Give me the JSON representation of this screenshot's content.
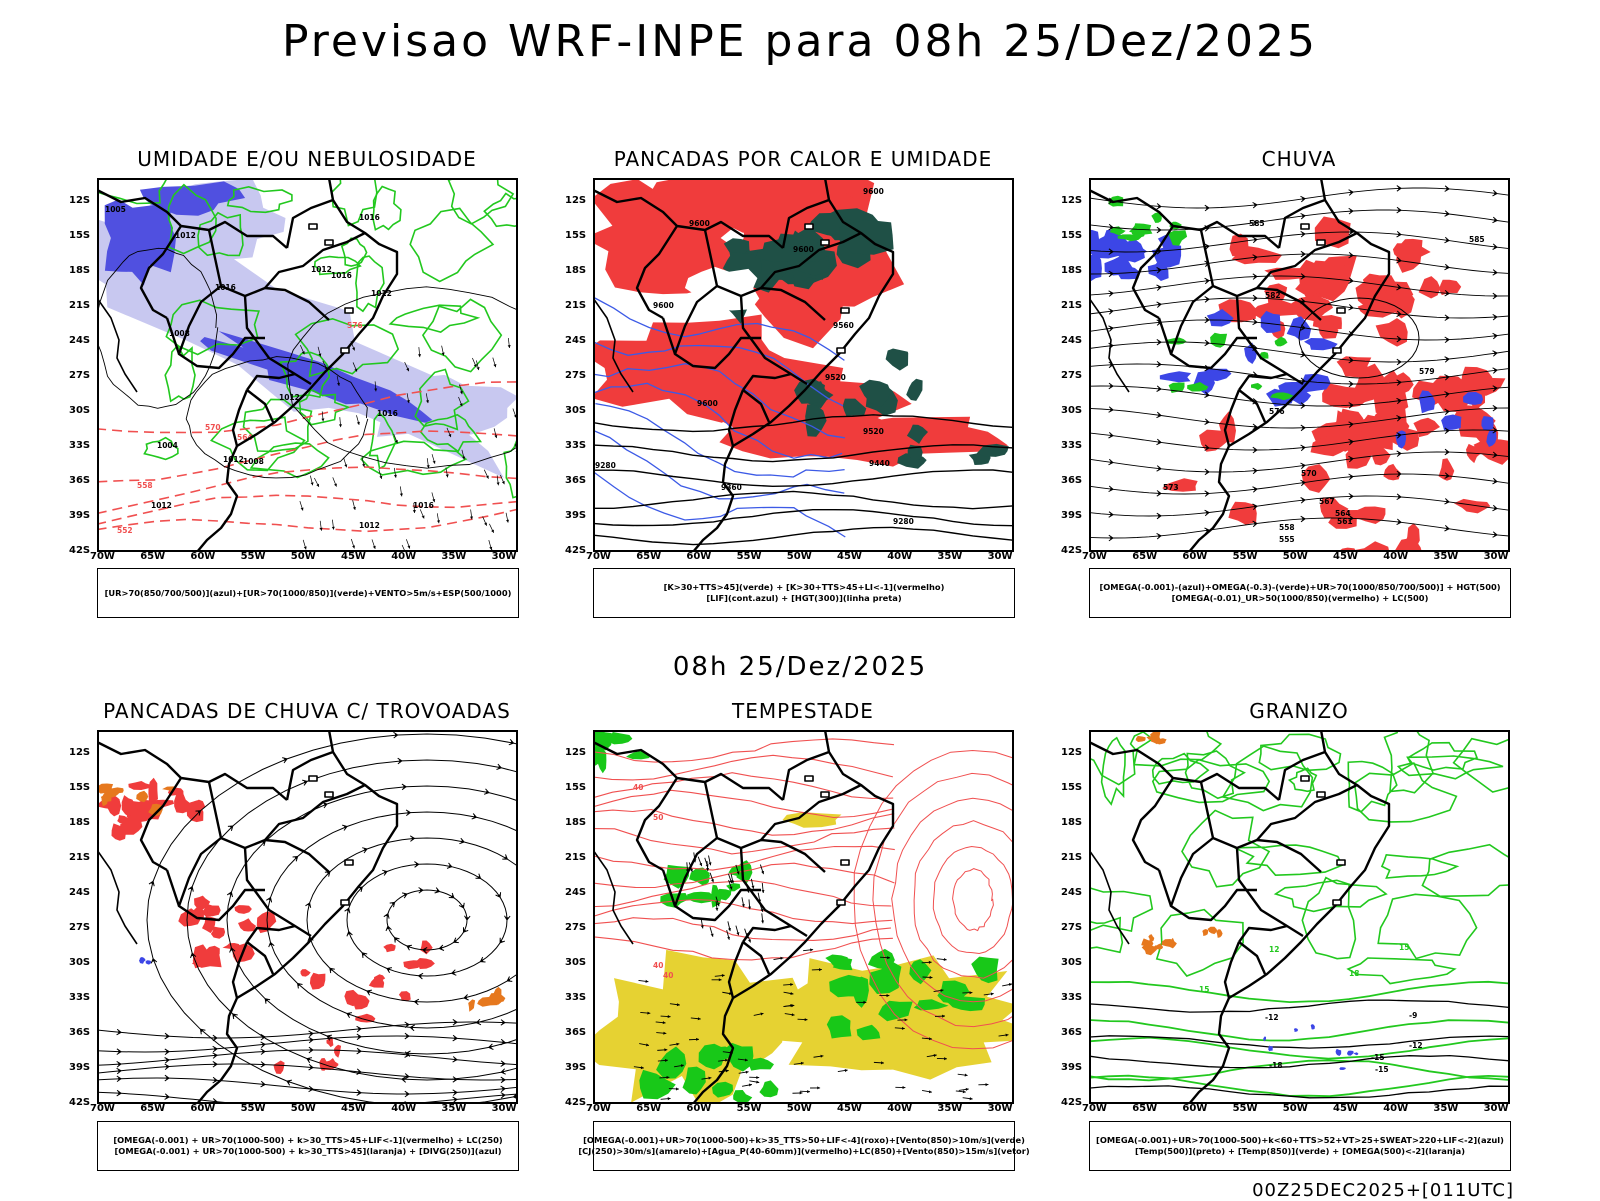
{
  "title": "Previsao WRF-INPE  para 08h 25/Dez/2025",
  "middle_time": "08h 25/Dez/2025",
  "footer": "00Z25DEC2025+[011UTC]",
  "axis": {
    "lat_ticks": [
      "12S",
      "15S",
      "18S",
      "21S",
      "24S",
      "27S",
      "30S",
      "33S",
      "36S",
      "39S",
      "42S"
    ],
    "lon_ticks": [
      "70W",
      "65W",
      "60W",
      "55W",
      "50W",
      "45W",
      "40W",
      "35W",
      "30W"
    ]
  },
  "panels": [
    {
      "title": "UMIDADE E/OU NEBULOSIDADE",
      "legend": [
        "[UR>70(850/700/500)](azul)+[UR>70(1000/850)](verde)+VENTO>5m/s+ESP(500/1000)"
      ],
      "labels": [
        "1005",
        "1012",
        "1016",
        "1012",
        "1016",
        "1012",
        "1016",
        "1008",
        "1012",
        "1016",
        "1012",
        "1012",
        "1016",
        "1012",
        "1008",
        "1004",
        "576",
        "570",
        "564",
        "558",
        "552"
      ]
    },
    {
      "title": "PANCADAS POR CALOR E UMIDADE",
      "legend": [
        "[K>30+TTS>45](verde) + [K>30+TTS>45+LI<-1](vermelho)",
        "[LIF](cont.azul) + [HGT(300)](linha preta)"
      ],
      "labels": [
        "9600",
        "9600",
        "9600",
        "9600",
        "9560",
        "9520",
        "9600",
        "9520",
        "9440",
        "9360",
        "9280",
        "9280"
      ]
    },
    {
      "title": "CHUVA",
      "legend": [
        "[OMEGA(-0.001)-(azul)+OMEGA(-0.3)-(verde)+UR>70(1000/850/700/500)] + HGT(500)",
        "[OMEGA(-0.01)_UR>50(1000/850)(vermelho) + LC(500)"
      ],
      "labels": [
        "585",
        "585",
        "582",
        "579",
        "576",
        "573",
        "570",
        "567",
        "564",
        "561",
        "558",
        "555"
      ]
    },
    {
      "title": "PANCADAS DE CHUVA C/ TROVOADAS",
      "legend": [
        "[OMEGA(-0.001) + UR>70(1000-500) + k>30_TTS>45+LIF<-1](vermelho) + LC(250)",
        "[OMEGA(-0.001) + UR>70(1000-500) + k>30_TTS>45](laranja) + [DIVG(250)](azul)"
      ],
      "labels": []
    },
    {
      "title": "TEMPESTADE",
      "legend": [
        "[OMEGA(-0.001)+UR>70(1000-500)+k>35_TTS>50+LIF<-4](roxo)+[Vento(850)>10m/s](verde)",
        "[CJ(250)>30m/s](amarelo)+[Agua_P(40-60mm)](vermelho)+LC(850)+[Vento(850)>15m/s](vetor)"
      ],
      "labels": [
        "40",
        "50",
        "40",
        "40"
      ]
    },
    {
      "title": "GRANIZO",
      "legend": [
        "[OMEGA(-0.001)+UR>70(1000-500)+k<60+TTS>52+VT>25+SWEAT>220+LIF<-2](azul)",
        "[Temp(500)](preto) + [Temp(850)](verde) + [OMEGA(500)<-2](laranja)"
      ],
      "labels": [
        "-12",
        "-15",
        "-18",
        "-12",
        "-15",
        "-9",
        "15",
        "12",
        "15",
        "18"
      ]
    }
  ],
  "colors": {
    "humidity_blue": "#5050e0",
    "humidity_lightblue": "#c8c8f0",
    "humidity_green": "#22c81e",
    "storm_red": "#f03c3c",
    "storm_darkgreen": "#1f5046",
    "jet_yellow": "#e6d232",
    "wind_green": "#18c818",
    "hail_orange": "#e6781e",
    "contour_red": "#f05050"
  }
}
